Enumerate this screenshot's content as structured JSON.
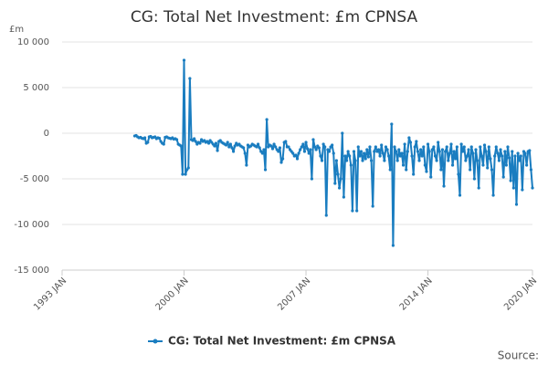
{
  "chart_data": {
    "type": "line",
    "title": "CG: Total Net Investment: £m CPNSA",
    "y_unit": "£m",
    "source": "Source:",
    "legend": "bottom",
    "grid": true,
    "xlim": [
      "1993-01",
      "2020-01"
    ],
    "xticks": [
      {
        "value": "1993-01",
        "label": "1993 JAN"
      },
      {
        "value": "2000-01",
        "label": "2000 JAN"
      },
      {
        "value": "2007-01",
        "label": "2007 JAN"
      },
      {
        "value": "2014-01",
        "label": "2014 JAN"
      },
      {
        "value": "2020-01",
        "label": "2020 JAN"
      }
    ],
    "ylim": [
      -15000,
      10000
    ],
    "yticks": [
      {
        "value": 10000,
        "label": "10 000"
      },
      {
        "value": 5000,
        "label": "5 000"
      },
      0,
      {
        "value": -5000,
        "label": "-5 000"
      },
      {
        "value": -10000,
        "label": "-10 000"
      },
      {
        "value": -15000,
        "label": "-15 000"
      }
    ],
    "x": [
      "1997-03",
      "1997-04",
      "1997-05",
      "1997-06",
      "1997-07",
      "1997-08",
      "1997-09",
      "1997-10",
      "1997-11",
      "1997-12",
      "1998-01",
      "1998-02",
      "1998-03",
      "1998-04",
      "1998-05",
      "1998-06",
      "1998-07",
      "1998-08",
      "1998-09",
      "1998-10",
      "1998-11",
      "1998-12",
      "1999-01",
      "1999-02",
      "1999-03",
      "1999-04",
      "1999-05",
      "1999-06",
      "1999-07",
      "1999-08",
      "1999-09",
      "1999-10",
      "1999-11",
      "1999-12",
      "2000-01",
      "2000-02",
      "2000-03",
      "2000-04",
      "2000-05",
      "2000-06",
      "2000-07",
      "2000-08",
      "2000-09",
      "2000-10",
      "2000-11",
      "2000-12",
      "2001-01",
      "2001-02",
      "2001-03",
      "2001-04",
      "2001-05",
      "2001-06",
      "2001-07",
      "2001-08",
      "2001-09",
      "2001-10",
      "2001-11",
      "2001-12",
      "2002-01",
      "2002-02",
      "2002-03",
      "2002-04",
      "2002-05",
      "2002-06",
      "2002-07",
      "2002-08",
      "2002-09",
      "2002-10",
      "2002-11",
      "2002-12",
      "2003-01",
      "2003-02",
      "2003-03",
      "2003-04",
      "2003-05",
      "2003-06",
      "2003-07",
      "2003-08",
      "2003-09",
      "2003-10",
      "2003-11",
      "2003-12",
      "2004-01",
      "2004-02",
      "2004-03",
      "2004-04",
      "2004-05",
      "2004-06",
      "2004-07",
      "2004-08",
      "2004-09",
      "2004-10",
      "2004-11",
      "2004-12",
      "2005-01",
      "2005-02",
      "2005-03",
      "2005-04",
      "2005-05",
      "2005-06",
      "2005-07",
      "2005-08",
      "2005-09",
      "2005-10",
      "2005-11",
      "2005-12",
      "2006-01",
      "2006-02",
      "2006-03",
      "2006-04",
      "2006-05",
      "2006-06",
      "2006-07",
      "2006-08",
      "2006-09",
      "2006-10",
      "2006-11",
      "2006-12",
      "2007-01",
      "2007-02",
      "2007-03",
      "2007-04",
      "2007-05",
      "2007-06",
      "2007-07",
      "2007-08",
      "2007-09",
      "2007-10",
      "2007-11",
      "2007-12",
      "2008-01",
      "2008-02",
      "2008-03",
      "2008-04",
      "2008-05",
      "2008-06",
      "2008-07",
      "2008-08",
      "2008-09",
      "2008-10",
      "2008-11",
      "2008-12",
      "2009-01",
      "2009-02",
      "2009-03",
      "2009-04",
      "2009-05",
      "2009-06",
      "2009-07",
      "2009-08",
      "2009-09",
      "2009-10",
      "2009-11",
      "2009-12",
      "2010-01",
      "2010-02",
      "2010-03",
      "2010-04",
      "2010-05",
      "2010-06",
      "2010-07",
      "2010-08",
      "2010-09",
      "2010-10",
      "2010-11",
      "2010-12",
      "2011-01",
      "2011-02",
      "2011-03",
      "2011-04",
      "2011-05",
      "2011-06",
      "2011-07",
      "2011-08",
      "2011-09",
      "2011-10",
      "2011-11",
      "2011-12",
      "2012-01",
      "2012-02",
      "2012-03",
      "2012-04",
      "2012-05",
      "2012-06",
      "2012-07",
      "2012-08",
      "2012-09",
      "2012-10",
      "2012-11",
      "2012-12",
      "2013-01",
      "2013-02",
      "2013-03",
      "2013-04",
      "2013-05",
      "2013-06",
      "2013-07",
      "2013-08",
      "2013-09",
      "2013-10",
      "2013-11",
      "2013-12",
      "2014-01",
      "2014-02",
      "2014-03",
      "2014-04",
      "2014-05",
      "2014-06",
      "2014-07",
      "2014-08",
      "2014-09",
      "2014-10",
      "2014-11",
      "2014-12",
      "2015-01",
      "2015-02",
      "2015-03",
      "2015-04",
      "2015-05",
      "2015-06",
      "2015-07",
      "2015-08",
      "2015-09",
      "2015-10",
      "2015-11",
      "2015-12",
      "2016-01",
      "2016-02",
      "2016-03",
      "2016-04",
      "2016-05",
      "2016-06",
      "2016-07",
      "2016-08",
      "2016-09",
      "2016-10",
      "2016-11",
      "2016-12",
      "2017-01",
      "2017-02",
      "2017-03",
      "2017-04",
      "2017-05",
      "2017-06",
      "2017-07",
      "2017-08",
      "2017-09",
      "2017-10",
      "2017-11",
      "2017-12",
      "2018-01",
      "2018-02",
      "2018-03",
      "2018-04",
      "2018-05",
      "2018-06",
      "2018-07",
      "2018-08",
      "2018-09",
      "2018-10",
      "2018-11",
      "2018-12",
      "2019-01",
      "2019-02",
      "2019-03",
      "2019-04",
      "2019-05",
      "2019-06",
      "2019-07",
      "2019-08",
      "2019-09",
      "2019-10",
      "2019-11",
      "2019-12",
      "2020-01"
    ],
    "series": [
      {
        "name": "CG: Total Net Investment: £m CPNSA",
        "color": "#1a7dc0",
        "values": [
          -300,
          -250,
          -400,
          -500,
          -450,
          -550,
          -600,
          -500,
          -1100,
          -1000,
          -400,
          -350,
          -500,
          -450,
          -400,
          -600,
          -500,
          -550,
          -900,
          -1100,
          -1200,
          -450,
          -400,
          -500,
          -550,
          -600,
          -500,
          -650,
          -600,
          -700,
          -1200,
          -1300,
          -1400,
          -4500,
          8000,
          -4500,
          -4000,
          -3800,
          6000,
          -700,
          -800,
          -600,
          -900,
          -1200,
          -1000,
          -1100,
          -700,
          -900,
          -800,
          -1000,
          -900,
          -1100,
          -800,
          -1000,
          -1200,
          -1400,
          -1100,
          -1900,
          -900,
          -800,
          -1000,
          -1100,
          -1200,
          -1300,
          -1000,
          -1500,
          -1200,
          -1600,
          -2000,
          -1400,
          -1100,
          -1300,
          -1200,
          -1400,
          -1500,
          -1600,
          -2200,
          -3500,
          -1300,
          -1500,
          -1400,
          -1200,
          -1300,
          -1400,
          -1500,
          -1200,
          -1600,
          -2000,
          -2200,
          -1800,
          -4000,
          1500,
          -1500,
          -1300,
          -1400,
          -1700,
          -1200,
          -1500,
          -1800,
          -2000,
          -1600,
          -3200,
          -2800,
          -1000,
          -900,
          -1500,
          -1500,
          -1800,
          -2000,
          -2200,
          -2500,
          -2400,
          -2800,
          -2200,
          -1800,
          -1500,
          -1200,
          -2000,
          -1000,
          -1700,
          -2200,
          -1800,
          -5000,
          -700,
          -1500,
          -1800,
          -1400,
          -1600,
          -2500,
          -3000,
          -1200,
          -1500,
          -9000,
          -1800,
          -2000,
          -1500,
          -1300,
          -2200,
          -5500,
          -3000,
          -4500,
          -6000,
          -5000,
          0,
          -7000,
          -2500,
          -3000,
          -2000,
          -2500,
          -3500,
          -8500,
          -2000,
          -3000,
          -8500,
          -1500,
          -2500,
          -2000,
          -3000,
          -2200,
          -2800,
          -1800,
          -2600,
          -1500,
          -3000,
          -8000,
          -2000,
          -1500,
          -2000,
          -1800,
          -2500,
          -1300,
          -2200,
          -3000,
          -1500,
          -1800,
          -2500,
          -4000,
          1000,
          -12300,
          -1500,
          -2000,
          -3000,
          -1800,
          -2500,
          -2200,
          -3500,
          -1200,
          -4000,
          -2000,
          -500,
          -1000,
          -2500,
          -4500,
          -1500,
          -900,
          -2000,
          -3000,
          -1800,
          -2500,
          -1500,
          -3500,
          -4200,
          -1200,
          -2000,
          -4800,
          -1800,
          -1500,
          -2500,
          -3000,
          -1000,
          -2000,
          -4000,
          -1800,
          -5800,
          -2000,
          -1500,
          -3000,
          -2200,
          -1200,
          -3500,
          -2000,
          -2800,
          -1500,
          -4500,
          -6800,
          -1200,
          -2000,
          -1500,
          -3000,
          -2500,
          -1800,
          -4000,
          -1500,
          -2200,
          -5000,
          -1800,
          -3000,
          -6000,
          -1500,
          -2500,
          -3500,
          -1300,
          -2000,
          -3800,
          -1500,
          -2800,
          -4000,
          -6800,
          -2500,
          -1500,
          -2200,
          -3000,
          -1800,
          -2500,
          -4800,
          -2000,
          -3500,
          -1500,
          -2700,
          -5200,
          -2000,
          -6000,
          -2500,
          -7800,
          -2200,
          -3000,
          -2500,
          -6200,
          -2000,
          -2200,
          -3500,
          -2000,
          -1900,
          -4000,
          -6000
        ]
      }
    ]
  }
}
